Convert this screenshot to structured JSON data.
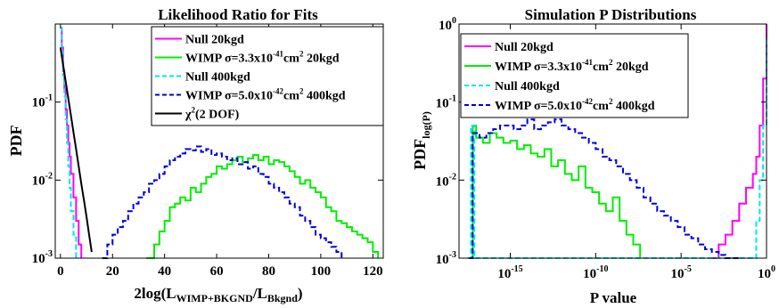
{
  "colors": {
    "magenta": "#ff00ff",
    "green": "#00ee00",
    "cyan": "#00e5ee",
    "blue": "#0000dd",
    "black": "#000000"
  },
  "chart_data": [
    {
      "type": "line",
      "title": "Likelihood Ratio for Fits",
      "ylabel": "PDF",
      "xlabel": "2log(L",
      "xlabel_sub1": "WIMP+BKGND",
      "xlabel_mid": "/L",
      "xlabel_sub2": "Bkgnd",
      "xlabel_end": ")",
      "xlim": [
        -2,
        124
      ],
      "ylim_log10": [
        -3,
        0
      ],
      "log_y": true,
      "grid": false,
      "legend_position": "top-right",
      "xticks": [
        "0",
        "20",
        "40",
        "60",
        "80",
        "100",
        "120"
      ],
      "ytick_labels": [
        {
          "base": "10",
          "exp": "-1"
        },
        {
          "base": "10",
          "exp": "-2"
        },
        {
          "base": "10",
          "exp": "-3"
        }
      ],
      "legend": [
        {
          "text": "Null 20kgd"
        },
        {
          "text": "WIMP σ=3.3x10",
          "sup": "-41",
          "text2": "cm",
          "sup2": "2",
          "text3": " 20kgd"
        },
        {
          "text": "Null 400kgd"
        },
        {
          "text": "WIMP σ=5.0x10",
          "sup": "-42",
          "text2": "cm",
          "sup2": "2",
          "text3": " 400kgd"
        },
        {
          "text": "χ",
          "sup": "2",
          "text2": "(2 DOF)"
        }
      ],
      "series": [
        {
          "name": "Null 20kgd",
          "color": "magenta",
          "style": "solid",
          "x": [
            0,
            0.5,
            1,
            1.5,
            2,
            2.5,
            3,
            3.5,
            4,
            5,
            6,
            7,
            8
          ],
          "y": [
            0.9,
            0.5,
            0.25,
            0.15,
            0.08,
            0.05,
            0.03,
            0.02,
            0.012,
            0.006,
            0.003,
            0.0015,
            0.001
          ]
        },
        {
          "name": "WIMP σ=3.3x10^-41cm^2 20kgd",
          "color": "green",
          "style": "solid",
          "x": [
            33,
            36,
            38,
            40,
            42,
            44,
            46,
            48,
            50,
            52,
            54,
            56,
            58,
            60,
            62,
            64,
            66,
            68,
            70,
            72,
            74,
            76,
            78,
            80,
            82,
            84,
            86,
            88,
            90,
            92,
            94,
            96,
            98,
            100,
            102,
            104,
            106,
            108,
            110,
            112,
            114,
            116,
            118,
            120,
            122
          ],
          "y": [
            0.001,
            0.0015,
            0.0022,
            0.003,
            0.0045,
            0.005,
            0.006,
            0.0055,
            0.008,
            0.007,
            0.009,
            0.011,
            0.012,
            0.015,
            0.014,
            0.016,
            0.018,
            0.02,
            0.017,
            0.019,
            0.021,
            0.018,
            0.02,
            0.016,
            0.018,
            0.017,
            0.015,
            0.013,
            0.011,
            0.009,
            0.01,
            0.008,
            0.007,
            0.006,
            0.0045,
            0.004,
            0.003,
            0.0028,
            0.0025,
            0.0022,
            0.002,
            0.0018,
            0.0016,
            0.0012,
            0.001
          ]
        },
        {
          "name": "Null 400kgd",
          "color": "cyan",
          "style": "dashed",
          "x": [
            0,
            0.5,
            1,
            1.5,
            2,
            2.5,
            3,
            3.5,
            4,
            5,
            6
          ],
          "y": [
            0.9,
            0.45,
            0.22,
            0.12,
            0.06,
            0.03,
            0.015,
            0.008,
            0.004,
            0.002,
            0.001
          ]
        },
        {
          "name": "WIMP σ=5.0x10^-42cm^2 400kgd",
          "color": "blue",
          "style": "dashed",
          "x": [
            16,
            18,
            20,
            22,
            24,
            26,
            28,
            30,
            32,
            34,
            36,
            38,
            40,
            42,
            44,
            46,
            48,
            50,
            52,
            54,
            56,
            58,
            60,
            62,
            64,
            66,
            68,
            70,
            72,
            74,
            76,
            78,
            80,
            82,
            84,
            86,
            88,
            90,
            92,
            94,
            96,
            98,
            100,
            102,
            104,
            106,
            108
          ],
          "y": [
            0.001,
            0.0015,
            0.002,
            0.0025,
            0.003,
            0.004,
            0.005,
            0.006,
            0.007,
            0.009,
            0.01,
            0.012,
            0.015,
            0.018,
            0.02,
            0.022,
            0.025,
            0.024,
            0.027,
            0.023,
            0.025,
            0.021,
            0.022,
            0.02,
            0.018,
            0.019,
            0.016,
            0.017,
            0.014,
            0.015,
            0.012,
            0.011,
            0.009,
            0.008,
            0.007,
            0.006,
            0.005,
            0.0045,
            0.0035,
            0.003,
            0.0025,
            0.002,
            0.0018,
            0.0016,
            0.0014,
            0.0012,
            0.001
          ]
        },
        {
          "name": "χ2(2 DOF)",
          "color": "black",
          "style": "line",
          "x": [
            0,
            1,
            2,
            3,
            4,
            5,
            6,
            7,
            8,
            9,
            10,
            11,
            12
          ],
          "y": [
            0.5,
            0.303,
            0.184,
            0.112,
            0.068,
            0.041,
            0.025,
            0.015,
            0.009,
            0.0056,
            0.0034,
            0.002,
            0.0012
          ]
        }
      ]
    },
    {
      "type": "line",
      "title": "Simulation P Distributions",
      "ylabel": "PDF",
      "ylabel_sub": "log(P)",
      "xlabel": "P value",
      "xlim_log10": [
        -18,
        0
      ],
      "ylim_log10": [
        -3,
        0
      ],
      "log_x": true,
      "log_y": true,
      "grid": false,
      "legend_position": "top-right",
      "xtick_labels": [
        {
          "base": "10",
          "exp": "-15"
        },
        {
          "base": "10",
          "exp": "-10"
        },
        {
          "base": "10",
          "exp": "-5"
        },
        {
          "base": "10",
          "exp": "0"
        }
      ],
      "ytick_labels": [
        {
          "base": "10",
          "exp": "0"
        },
        {
          "base": "10",
          "exp": "-1"
        },
        {
          "base": "10",
          "exp": "-2"
        },
        {
          "base": "10",
          "exp": "-3"
        }
      ],
      "legend": [
        {
          "text": "Null 20kgd"
        },
        {
          "text": "WIMP σ=3.3x10",
          "sup": "-41",
          "text2": "cm",
          "sup2": "2",
          "text3": " 20kgd"
        },
        {
          "text": "Null 400kgd"
        },
        {
          "text": "WIMP σ=5.0x10",
          "sup": "-42",
          "text2": "cm",
          "sup2": "2",
          "text3": " 400kgd"
        }
      ],
      "series": [
        {
          "name": "Null 20kgd",
          "color": "magenta",
          "style": "solid",
          "x": [
            -3.2,
            -2.8,
            -2.4,
            -2.0,
            -1.6,
            -1.2,
            -0.8,
            -0.6,
            -0.4,
            -0.2,
            0
          ],
          "y": [
            0.001,
            0.0015,
            0.002,
            0.003,
            0.005,
            0.008,
            0.012,
            0.02,
            0.05,
            0.2,
            1.0
          ]
        },
        {
          "name": "WIMP σ=3.3x10^-41cm^2 20kgd",
          "color": "green",
          "style": "solid",
          "x": [
            -17.4,
            -17.2,
            -17.0,
            -16.6,
            -16.2,
            -15.8,
            -15.4,
            -15.0,
            -14.6,
            -14.2,
            -13.8,
            -13.4,
            -13.0,
            -12.6,
            -12.2,
            -11.8,
            -11.4,
            -11.0,
            -10.6,
            -10.2,
            -9.8,
            -9.4,
            -9.0,
            -8.6,
            -8.2,
            -7.8,
            -7.4
          ],
          "y": [
            0.001,
            0.05,
            0.035,
            0.03,
            0.04,
            0.035,
            0.03,
            0.032,
            0.025,
            0.028,
            0.022,
            0.02,
            0.025,
            0.015,
            0.018,
            0.012,
            0.01,
            0.015,
            0.008,
            0.007,
            0.005,
            0.004,
            0.006,
            0.003,
            0.002,
            0.0015,
            0.001
          ]
        },
        {
          "name": "Null 400kgd",
          "color": "cyan",
          "style": "dashed",
          "x": [
            -17.5,
            -17.3,
            -17.1,
            -0.8,
            -0.6,
            -0.4,
            -0.2,
            0
          ],
          "y": [
            0.001,
            0.05,
            0.001,
            0.001,
            0.003,
            0.01,
            0.05,
            0.7
          ]
        },
        {
          "name": "WIMP σ=5.0x10^-42cm^2 400kgd",
          "color": "blue",
          "style": "dashed",
          "x": [
            -17.4,
            -17.2,
            -16.8,
            -16.4,
            -16.0,
            -15.6,
            -15.2,
            -14.8,
            -14.4,
            -14.0,
            -13.6,
            -13.2,
            -12.8,
            -12.4,
            -12.0,
            -11.6,
            -11.2,
            -10.8,
            -10.4,
            -10.0,
            -9.6,
            -9.2,
            -8.8,
            -8.4,
            -8.0,
            -7.6,
            -7.2,
            -6.8,
            -6.4,
            -6.0,
            -5.6,
            -5.2,
            -4.8,
            -4.4,
            -4.0,
            -3.6,
            -3.2,
            -2.8,
            -2.4,
            -2.0,
            -1.6
          ],
          "y": [
            0.001,
            0.04,
            0.035,
            0.04,
            0.045,
            0.05,
            0.05,
            0.045,
            0.05,
            0.06,
            0.045,
            0.05,
            0.055,
            0.06,
            0.05,
            0.045,
            0.04,
            0.035,
            0.03,
            0.025,
            0.02,
            0.018,
            0.015,
            0.012,
            0.01,
            0.008,
            0.006,
            0.005,
            0.004,
            0.0035,
            0.003,
            0.0025,
            0.002,
            0.0018,
            0.0015,
            0.0013,
            0.0012,
            0.0011,
            0.001,
            0.001,
            0.001
          ]
        }
      ]
    }
  ]
}
